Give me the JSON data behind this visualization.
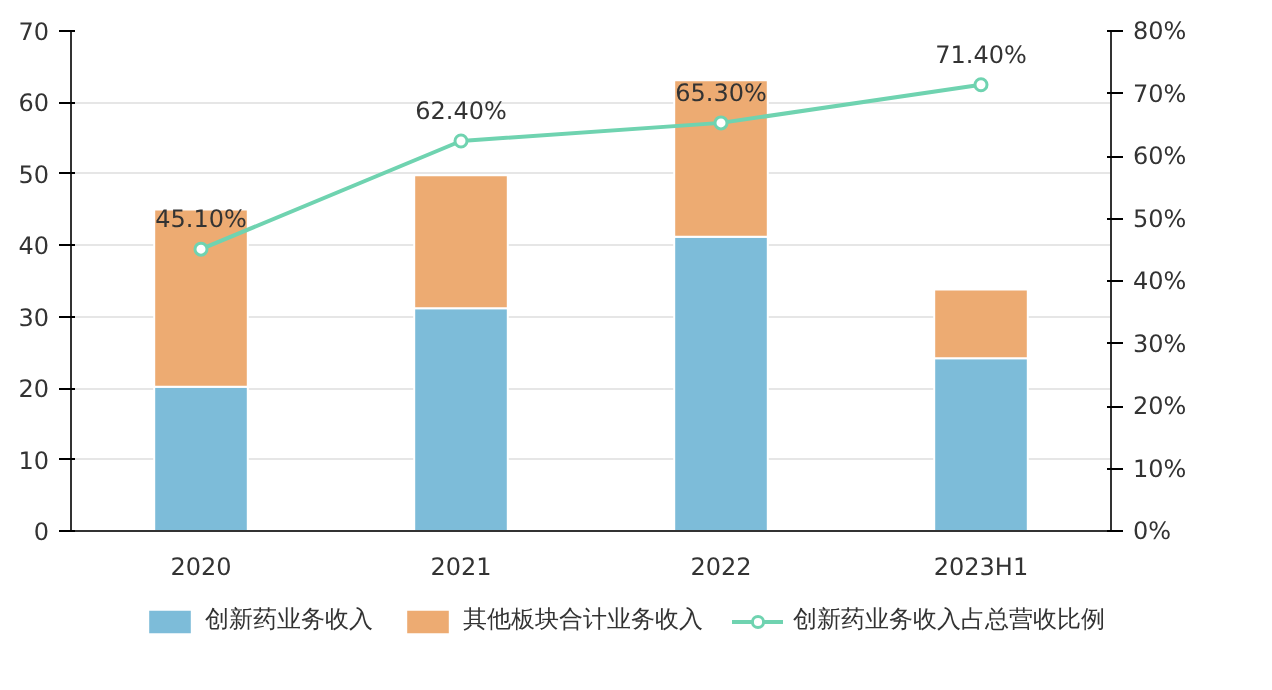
{
  "chart_data": {
    "type": "bar",
    "stacked": true,
    "categories": [
      "2020",
      "2021",
      "2022",
      "2023H1"
    ],
    "series": [
      {
        "name": "创新药业务收入",
        "color": "#7dbcd9",
        "values": [
          20.2,
          31.2,
          41.2,
          24.2
        ]
      },
      {
        "name": "其他板块合计业务收入",
        "color": "#edab72",
        "values": [
          24.8,
          18.6,
          21.9,
          9.6
        ]
      },
      {
        "name": "创新药业务收入占总营收比例",
        "type": "line",
        "axis": "y2",
        "color": "#6fd3b0",
        "marker": "circle",
        "values": [
          45.1,
          62.4,
          65.3,
          71.4
        ],
        "value_labels": [
          "45.10%",
          "62.40%",
          "65.30%",
          "71.40%"
        ]
      }
    ],
    "ylim": [
      0,
      70
    ],
    "yticks": [
      0,
      10,
      20,
      30,
      40,
      50,
      60,
      70
    ],
    "y2lim": [
      0,
      80
    ],
    "y2ticks": [
      {
        "value": 0,
        "label": "0%"
      },
      {
        "value": 10,
        "label": "10%"
      },
      {
        "value": 20,
        "label": "20%"
      },
      {
        "value": 30,
        "label": "30%"
      },
      {
        "value": 40,
        "label": "40%"
      },
      {
        "value": 50,
        "label": "50%"
      },
      {
        "value": 60,
        "label": "60%"
      },
      {
        "value": 70,
        "label": "70%"
      },
      {
        "value": 80,
        "label": "80%"
      }
    ],
    "grid": "y",
    "legend": "bottom"
  }
}
